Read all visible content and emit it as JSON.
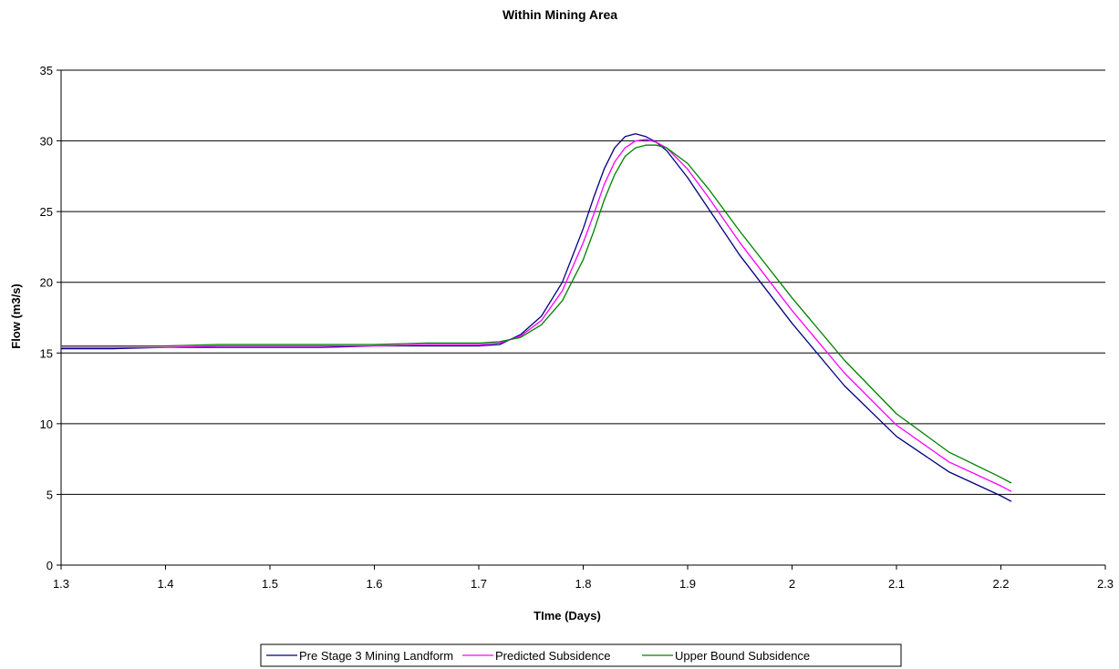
{
  "chart_data": {
    "type": "line",
    "title": "Within Mining Area",
    "xlabel": "TIme (Days)",
    "ylabel": "Flow (m3/s)",
    "xlim": [
      1.3,
      2.3
    ],
    "ylim": [
      0,
      35
    ],
    "xticks": [
      "1.3",
      "1.4",
      "1.5",
      "1.6",
      "1.7",
      "1.8",
      "1.9",
      "2",
      "2.1",
      "2.2",
      "2.3"
    ],
    "yticks": [
      "0",
      "5",
      "10",
      "15",
      "20",
      "25",
      "30",
      "35"
    ],
    "grid": "horizontal",
    "legend_position": "bottom",
    "series": [
      {
        "name": "Pre Stage 3 Mining Landform",
        "color": "#000080",
        "x": [
          1.3,
          1.35,
          1.4,
          1.45,
          1.5,
          1.55,
          1.6,
          1.65,
          1.7,
          1.72,
          1.74,
          1.76,
          1.78,
          1.8,
          1.81,
          1.82,
          1.83,
          1.84,
          1.85,
          1.86,
          1.87,
          1.88,
          1.9,
          1.92,
          1.95,
          2.0,
          2.05,
          2.1,
          2.15,
          2.2,
          2.21
        ],
        "y": [
          15.3,
          15.3,
          15.4,
          15.4,
          15.4,
          15.4,
          15.5,
          15.5,
          15.5,
          15.6,
          16.3,
          17.6,
          20.0,
          23.8,
          26.0,
          28.0,
          29.5,
          30.3,
          30.5,
          30.3,
          29.9,
          29.3,
          27.4,
          25.2,
          21.9,
          17.1,
          12.7,
          9.1,
          6.6,
          4.9,
          4.5
        ]
      },
      {
        "name": "Predicted Subsidence",
        "color": "#ff00ff",
        "x": [
          1.3,
          1.35,
          1.4,
          1.45,
          1.5,
          1.55,
          1.6,
          1.65,
          1.7,
          1.72,
          1.74,
          1.76,
          1.78,
          1.8,
          1.81,
          1.82,
          1.83,
          1.84,
          1.85,
          1.86,
          1.87,
          1.88,
          1.9,
          1.92,
          1.95,
          2.0,
          2.05,
          2.1,
          2.15,
          2.2,
          2.21
        ],
        "y": [
          15.4,
          15.4,
          15.4,
          15.5,
          15.5,
          15.5,
          15.5,
          15.6,
          15.6,
          15.7,
          16.2,
          17.3,
          19.4,
          22.8,
          24.8,
          26.9,
          28.5,
          29.5,
          30.0,
          30.1,
          29.9,
          29.5,
          28.0,
          26.0,
          22.8,
          18.0,
          13.6,
          9.9,
          7.3,
          5.6,
          5.2
        ]
      },
      {
        "name": "Upper Bound Subsidence",
        "color": "#008000",
        "x": [
          1.3,
          1.35,
          1.4,
          1.45,
          1.5,
          1.55,
          1.6,
          1.65,
          1.7,
          1.72,
          1.74,
          1.76,
          1.78,
          1.8,
          1.81,
          1.82,
          1.83,
          1.84,
          1.85,
          1.86,
          1.87,
          1.88,
          1.9,
          1.92,
          1.95,
          2.0,
          2.05,
          2.1,
          2.15,
          2.2,
          2.21
        ],
        "y": [
          15.5,
          15.5,
          15.5,
          15.6,
          15.6,
          15.6,
          15.6,
          15.7,
          15.7,
          15.8,
          16.1,
          17.0,
          18.7,
          21.6,
          23.6,
          25.8,
          27.6,
          28.9,
          29.5,
          29.7,
          29.7,
          29.5,
          28.4,
          26.6,
          23.6,
          18.9,
          14.5,
          10.7,
          8.0,
          6.2,
          5.8
        ]
      }
    ]
  }
}
